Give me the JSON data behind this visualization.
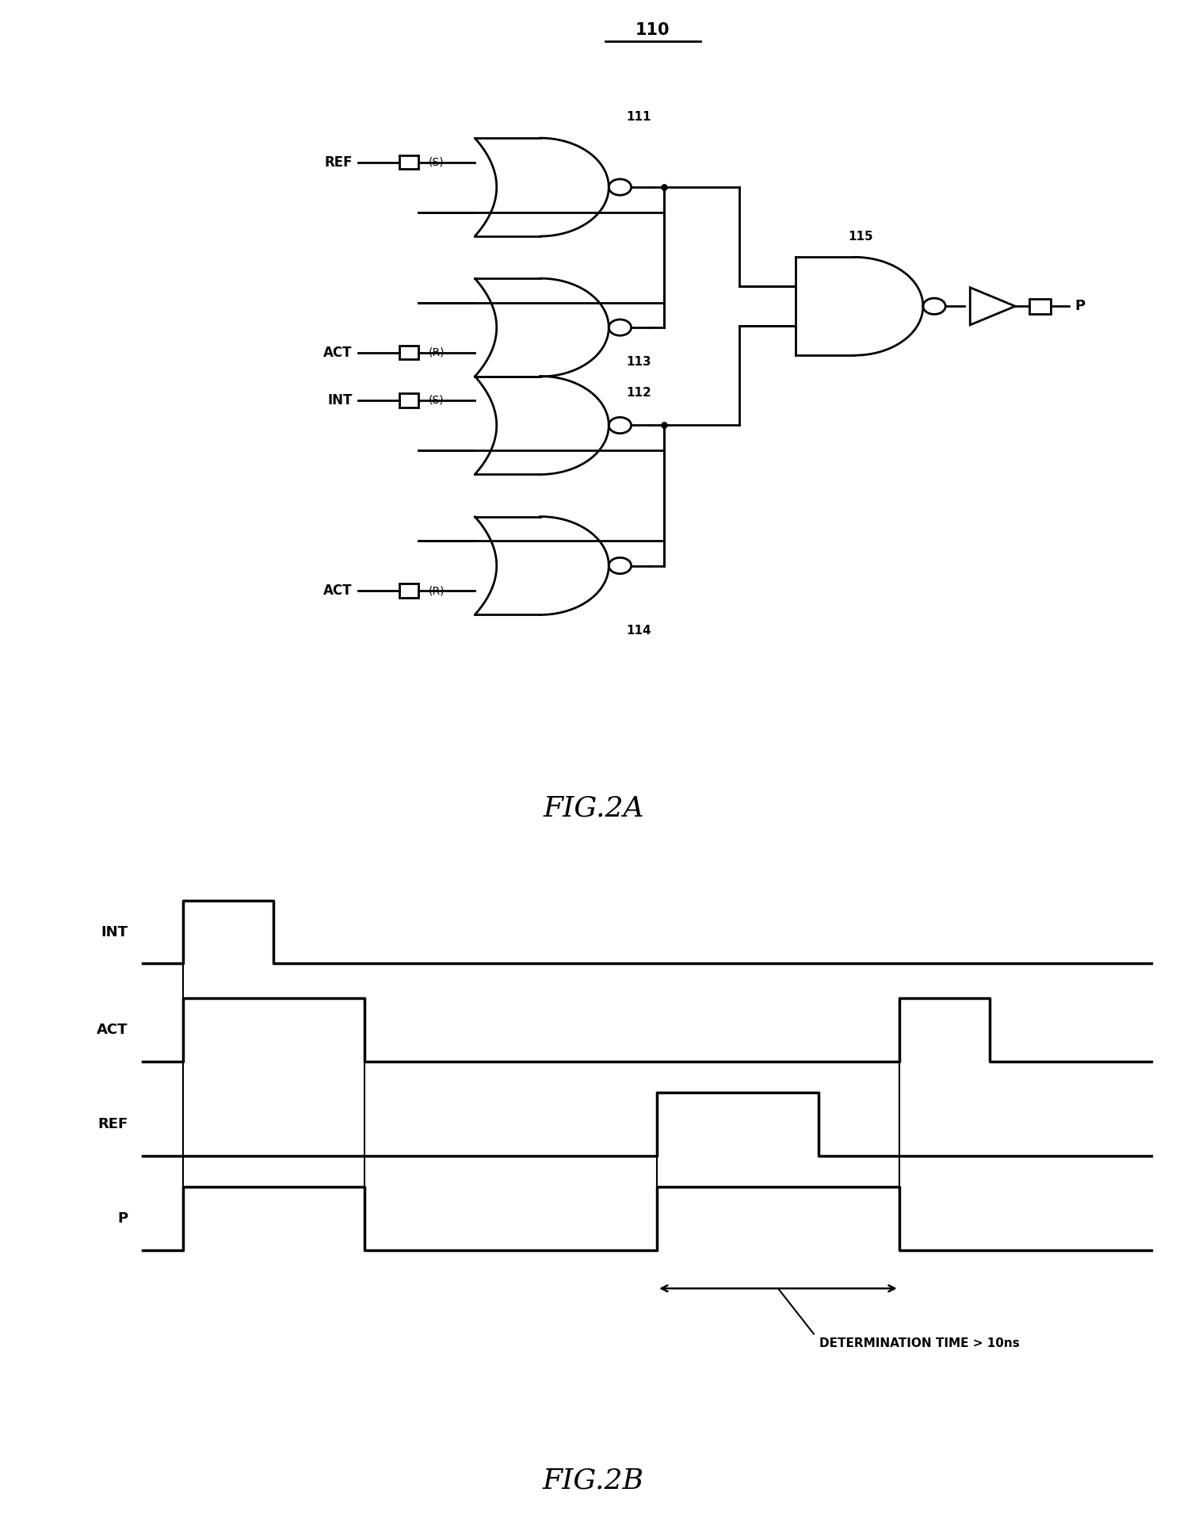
{
  "fig_width": 14.98,
  "fig_height": 19.16,
  "bg_color": "#ffffff",
  "fig2a_label": "FIG.2A",
  "fig2b_label": "FIG.2B",
  "title_110": "110",
  "gate_labels": [
    "111",
    "112",
    "113",
    "114"
  ],
  "gate_node_label": "115",
  "input_labels": [
    "REF",
    "ACT",
    "INT",
    "ACT"
  ],
  "sr_s_labels": [
    "(S)",
    "(S)"
  ],
  "sr_r_labels": [
    "(R)",
    "(R)"
  ],
  "output_label": "P",
  "timing_signals": [
    "INT",
    "ACT",
    "REF",
    "P"
  ],
  "det_time_label": "DETERMINATION TIME > 10ns",
  "lw_circuit": 2.0,
  "lw_timing": 2.5
}
